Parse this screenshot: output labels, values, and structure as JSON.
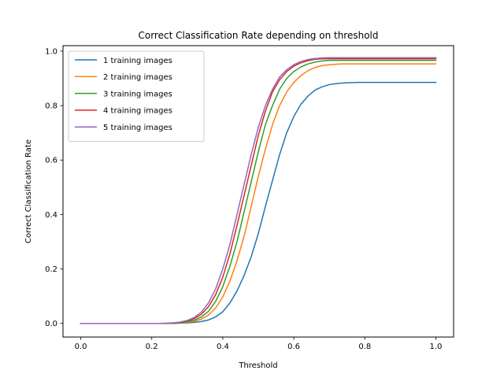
{
  "chart_data": {
    "type": "line",
    "title": "Correct Classification Rate depending on threshold",
    "xlabel": "Threshold",
    "ylabel": "Correct Classification Rate",
    "xlim": [
      -0.05,
      1.05
    ],
    "ylim": [
      -0.05,
      1.02
    ],
    "xticks": [
      0.0,
      0.2,
      0.4,
      0.6,
      0.8,
      1.0
    ],
    "xtick_labels": [
      "0.0",
      "0.2",
      "0.4",
      "0.6",
      "0.8",
      "1.0"
    ],
    "yticks": [
      0.0,
      0.2,
      0.4,
      0.6,
      0.8,
      1.0
    ],
    "ytick_labels": [
      "0.0",
      "0.2",
      "0.4",
      "0.6",
      "0.8",
      "1.0"
    ],
    "grid": false,
    "legend_position": "top-left",
    "x": [
      0.0,
      0.02,
      0.04,
      0.06,
      0.08,
      0.1,
      0.12,
      0.14,
      0.16,
      0.18,
      0.2,
      0.22,
      0.24,
      0.26,
      0.28,
      0.3,
      0.32,
      0.34,
      0.36,
      0.38,
      0.4,
      0.42,
      0.44,
      0.46,
      0.48,
      0.5,
      0.52,
      0.54,
      0.56,
      0.58,
      0.6,
      0.62,
      0.64,
      0.66,
      0.68,
      0.7,
      0.72,
      0.74,
      0.76,
      0.78,
      0.8,
      0.82,
      0.84,
      0.86,
      0.88,
      0.9,
      0.92,
      0.94,
      0.96,
      0.98,
      1.0
    ],
    "series": [
      {
        "name": "1 training images",
        "color": "#1f77b4",
        "values": [
          0.0,
          0.0,
          0.0,
          0.0,
          0.0,
          0.0,
          0.0,
          0.0,
          0.0,
          0.0,
          0.0,
          0.0,
          0.0,
          0.0,
          0.001,
          0.002,
          0.004,
          0.007,
          0.013,
          0.024,
          0.043,
          0.075,
          0.119,
          0.176,
          0.245,
          0.33,
          0.43,
          0.525,
          0.62,
          0.7,
          0.76,
          0.805,
          0.835,
          0.857,
          0.869,
          0.877,
          0.881,
          0.883,
          0.884,
          0.885,
          0.885,
          0.885,
          0.885,
          0.885,
          0.885,
          0.885,
          0.885,
          0.885,
          0.885,
          0.885,
          0.885
        ]
      },
      {
        "name": "2 training images",
        "color": "#ff7f0e",
        "values": [
          0.0,
          0.0,
          0.0,
          0.0,
          0.0,
          0.0,
          0.0,
          0.0,
          0.0,
          0.0,
          0.0,
          0.0,
          0.0,
          0.001,
          0.002,
          0.004,
          0.008,
          0.016,
          0.031,
          0.057,
          0.098,
          0.155,
          0.23,
          0.32,
          0.43,
          0.54,
          0.64,
          0.73,
          0.8,
          0.85,
          0.885,
          0.91,
          0.928,
          0.94,
          0.947,
          0.95,
          0.952,
          0.953,
          0.953,
          0.953,
          0.953,
          0.953,
          0.953,
          0.953,
          0.953,
          0.953,
          0.953,
          0.953,
          0.953,
          0.953,
          0.953
        ]
      },
      {
        "name": "3 training images",
        "color": "#2ca02c",
        "values": [
          0.0,
          0.0,
          0.0,
          0.0,
          0.0,
          0.0,
          0.0,
          0.0,
          0.0,
          0.0,
          0.0,
          0.0,
          0.0,
          0.001,
          0.003,
          0.006,
          0.012,
          0.024,
          0.045,
          0.081,
          0.135,
          0.21,
          0.3,
          0.41,
          0.52,
          0.63,
          0.73,
          0.8,
          0.86,
          0.9,
          0.925,
          0.942,
          0.953,
          0.96,
          0.964,
          0.966,
          0.966,
          0.966,
          0.966,
          0.966,
          0.966,
          0.966,
          0.966,
          0.966,
          0.966,
          0.966,
          0.966,
          0.966,
          0.966,
          0.966,
          0.966
        ]
      },
      {
        "name": "4 training images",
        "color": "#d62728",
        "values": [
          0.0,
          0.0,
          0.0,
          0.0,
          0.0,
          0.0,
          0.0,
          0.0,
          0.0,
          0.0,
          0.0,
          0.0,
          0.0,
          0.002,
          0.004,
          0.009,
          0.018,
          0.034,
          0.062,
          0.106,
          0.17,
          0.255,
          0.36,
          0.47,
          0.58,
          0.69,
          0.78,
          0.85,
          0.895,
          0.925,
          0.945,
          0.957,
          0.965,
          0.97,
          0.972,
          0.972,
          0.972,
          0.972,
          0.972,
          0.972,
          0.972,
          0.972,
          0.972,
          0.972,
          0.972,
          0.972,
          0.972,
          0.972,
          0.972,
          0.972,
          0.972
        ]
      },
      {
        "name": "5 training images",
        "color": "#9467bd",
        "values": [
          0.0,
          0.0,
          0.0,
          0.0,
          0.0,
          0.0,
          0.0,
          0.0,
          0.0,
          0.0,
          0.0,
          0.0,
          0.001,
          0.002,
          0.005,
          0.011,
          0.022,
          0.042,
          0.076,
          0.127,
          0.2,
          0.29,
          0.4,
          0.51,
          0.62,
          0.72,
          0.8,
          0.86,
          0.905,
          0.932,
          0.95,
          0.962,
          0.969,
          0.973,
          0.975,
          0.976,
          0.976,
          0.976,
          0.976,
          0.976,
          0.976,
          0.976,
          0.976,
          0.976,
          0.976,
          0.976,
          0.976,
          0.976,
          0.976,
          0.976,
          0.976
        ]
      }
    ]
  }
}
